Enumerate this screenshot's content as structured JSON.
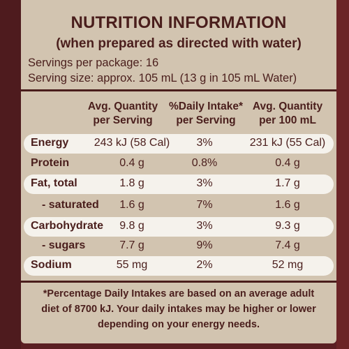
{
  "title": "NUTRITION INFORMATION",
  "subtitle": "(when prepared as directed with water)",
  "servings_per_package": "Servings per package: 16",
  "serving_size": "Serving size: approx. 105 mL (13 g in 105 mL Water)",
  "headers": {
    "avg_per_serving": [
      "Avg. Quantity",
      "per Serving"
    ],
    "daily_intake": [
      "%Daily Intake*",
      "per Serving"
    ],
    "avg_per_100ml": [
      "Avg. Quantity",
      "per 100 mL"
    ]
  },
  "rows": [
    {
      "nutrient": "Energy",
      "per_serving": "243 kJ (58 Cal)",
      "daily_intake": "3%",
      "per_100ml": "231 kJ (55 Cal)"
    },
    {
      "nutrient": "Protein",
      "per_serving": "0.4 g",
      "daily_intake": "0.8%",
      "per_100ml": "0.4 g"
    },
    {
      "nutrient": "Fat, total",
      "per_serving": "1.8 g",
      "daily_intake": "3%",
      "per_100ml": "1.7 g"
    },
    {
      "nutrient": "- saturated",
      "per_serving": "1.6 g",
      "daily_intake": "7%",
      "per_100ml": "1.6 g"
    },
    {
      "nutrient": "Carbohydrate",
      "per_serving": "9.8 g",
      "daily_intake": "3%",
      "per_100ml": "9.3 g"
    },
    {
      "nutrient": "- sugars",
      "per_serving": "7.7 g",
      "daily_intake": "9%",
      "per_100ml": "7.4 g"
    },
    {
      "nutrient": "Sodium",
      "per_serving": "55 mg",
      "daily_intake": "2%",
      "per_100ml": "52 mg"
    }
  ],
  "footnote": [
    "*Percentage Daily Intakes are based on an average adult",
    "diet of 8700 kJ. Your daily intakes may be higher or lower",
    "depending on your energy needs."
  ]
}
